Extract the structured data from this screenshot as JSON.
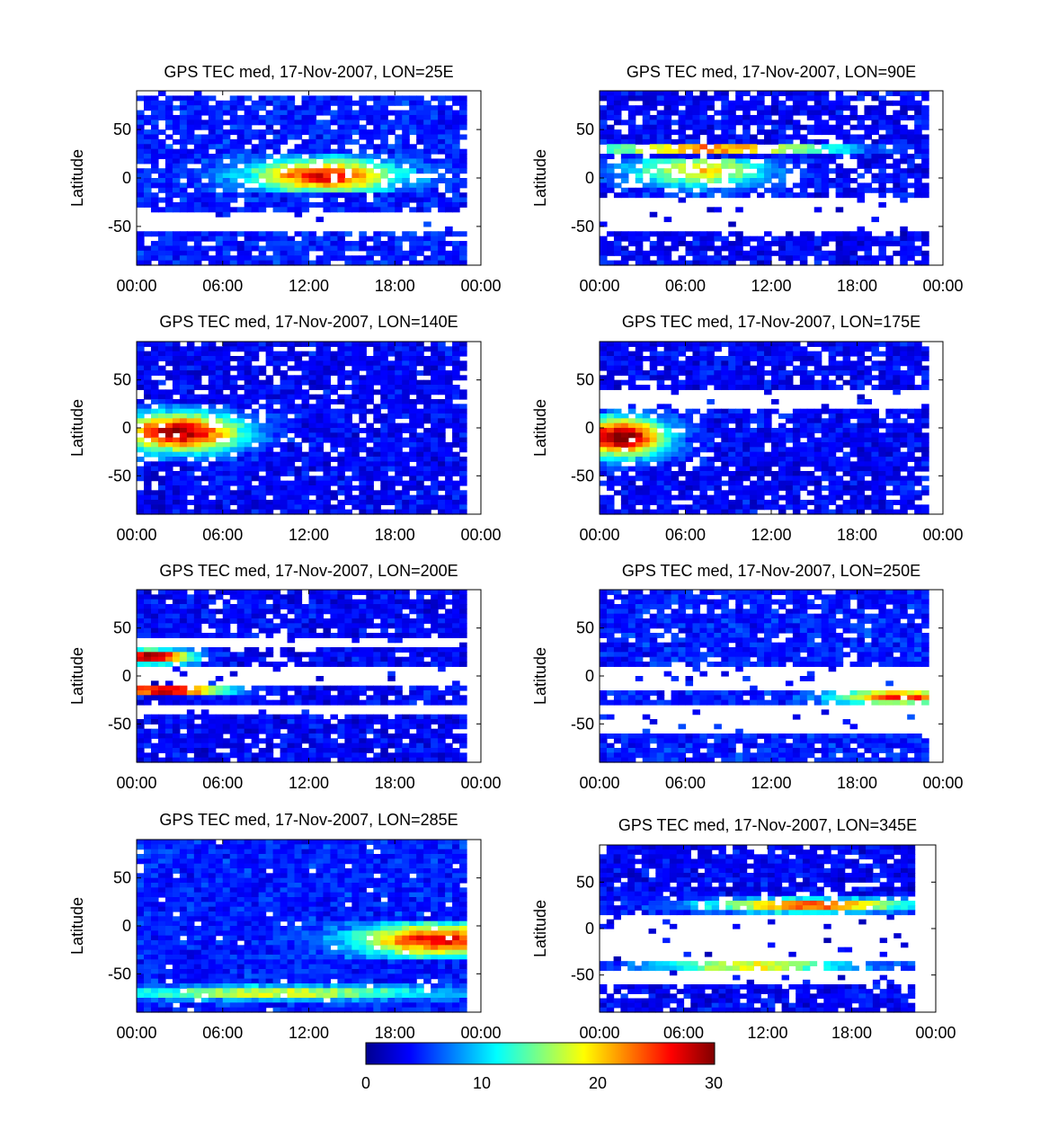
{
  "figure": {
    "x_tick_labels": [
      "00:00",
      "06:00",
      "12:00",
      "18:00",
      "00:00"
    ],
    "y_tick_labels": [
      "50",
      "0",
      "-50"
    ],
    "ylabel": "Latitude"
  },
  "chart_data": [
    {
      "type": "heatmap",
      "title": "GPS TEC med, 17-Nov-2007, LON=25E",
      "xlabel": "",
      "ylabel": "Latitude",
      "xlim": [
        0,
        24
      ],
      "ylim": [
        -90,
        90
      ],
      "x_ticks": [
        "00:00",
        "06:00",
        "12:00",
        "18:00",
        "00:00"
      ],
      "y_ticks": [
        50,
        0,
        -50
      ],
      "color_range": [
        0,
        30
      ],
      "features": [
        {
          "t": 13,
          "lat": 2,
          "st": 3.5,
          "slat": 12,
          "amp": 22,
          "lmin": -15,
          "lmax": 25
        }
      ],
      "base": 4,
      "bands": [
        [
          -35,
          85
        ],
        [
          -90,
          -55
        ]
      ],
      "drop": 0.14,
      "tmax": 23.1
    },
    {
      "type": "heatmap",
      "title": "GPS TEC med, 17-Nov-2007, LON=90E",
      "xlabel": "",
      "ylabel": "Latitude",
      "xlim": [
        0,
        24
      ],
      "ylim": [
        -90,
        90
      ],
      "x_ticks": [
        "00:00",
        "06:00",
        "12:00",
        "18:00",
        "00:00"
      ],
      "y_ticks": [
        50,
        0,
        -50
      ],
      "color_range": [
        0,
        30
      ],
      "features": [
        {
          "t": 7,
          "lat": 8,
          "st": 3.5,
          "slat": 12,
          "amp": 16,
          "lmin": -20,
          "lmax": 22
        },
        {
          "t": 8,
          "lat": 30,
          "st": 6,
          "slat": 3,
          "amp": 26,
          "lmin": 26,
          "lmax": 34
        }
      ],
      "base": 3,
      "bands": [
        [
          -20,
          90
        ],
        [
          -90,
          -55
        ]
      ],
      "drop": 0.2,
      "tmax": 23.1
    },
    {
      "type": "heatmap",
      "title": "GPS TEC med, 17-Nov-2007, LON=140E",
      "xlabel": "",
      "ylabel": "Latitude",
      "xlim": [
        0,
        24
      ],
      "ylim": [
        -90,
        90
      ],
      "x_ticks": [
        "00:00",
        "06:00",
        "12:00",
        "18:00",
        "00:00"
      ],
      "y_ticks": [
        50,
        0,
        -50
      ],
      "color_range": [
        0,
        30
      ],
      "features": [
        {
          "t": 3,
          "lat": -5,
          "st": 3,
          "slat": 14,
          "amp": 26,
          "lmin": -35,
          "lmax": 25
        }
      ],
      "base": 3,
      "bands": [
        [
          -60,
          90
        ],
        [
          -90,
          -60
        ]
      ],
      "drop": 0.12,
      "tmax": 23.1
    },
    {
      "type": "heatmap",
      "title": "GPS TEC med, 17-Nov-2007, LON=175E",
      "xlabel": "",
      "ylabel": "Latitude",
      "xlim": [
        0,
        24
      ],
      "ylim": [
        -90,
        90
      ],
      "x_ticks": [
        "00:00",
        "06:00",
        "12:00",
        "18:00",
        "00:00"
      ],
      "y_ticks": [
        50,
        0,
        -50
      ],
      "color_range": [
        0,
        30
      ],
      "features": [
        {
          "t": 1.5,
          "lat": -10,
          "st": 2.2,
          "slat": 14,
          "amp": 28,
          "lmin": -45,
          "lmax": 20
        }
      ],
      "base": 3,
      "bands": [
        [
          -60,
          20
        ],
        [
          40,
          90
        ],
        [
          -90,
          -60
        ]
      ],
      "drop": 0.12,
      "tmax": 23.1
    },
    {
      "type": "heatmap",
      "title": "GPS TEC med, 17-Nov-2007, LON=200E",
      "xlabel": "",
      "ylabel": "Latitude",
      "xlim": [
        0,
        24
      ],
      "ylim": [
        -90,
        90
      ],
      "x_ticks": [
        "00:00",
        "06:00",
        "12:00",
        "18:00",
        "00:00"
      ],
      "y_ticks": [
        50,
        0,
        -50
      ],
      "color_range": [
        0,
        30
      ],
      "features": [
        {
          "t": 1,
          "lat": 20,
          "st": 2,
          "slat": 5,
          "amp": 28,
          "lmin": 10,
          "lmax": 28
        },
        {
          "t": 2,
          "lat": -15,
          "st": 3,
          "slat": 5,
          "amp": 26,
          "lmin": -22,
          "lmax": -8
        }
      ],
      "base": 3,
      "bands": [
        [
          -30,
          -8
        ],
        [
          10,
          28
        ],
        [
          40,
          90
        ],
        [
          -90,
          -40
        ]
      ],
      "drop": 0.1,
      "tmax": 23.1
    },
    {
      "type": "heatmap",
      "title": "GPS TEC med, 17-Nov-2007, LON=250E",
      "xlabel": "",
      "ylabel": "Latitude",
      "xlim": [
        0,
        24
      ],
      "ylim": [
        -90,
        90
      ],
      "x_ticks": [
        "00:00",
        "06:00",
        "12:00",
        "18:00",
        "00:00"
      ],
      "y_ticks": [
        50,
        0,
        -50
      ],
      "color_range": [
        0,
        30
      ],
      "features": [
        {
          "t": 21,
          "lat": -22,
          "st": 3,
          "slat": 5,
          "amp": 22,
          "lmin": -28,
          "lmax": -15
        }
      ],
      "base": 4,
      "bands": [
        [
          10,
          90
        ],
        [
          -30,
          -15
        ],
        [
          -90,
          -60
        ]
      ],
      "drop": 0.1,
      "tmax": 23.1
    },
    {
      "type": "heatmap",
      "title": "GPS TEC med, 17-Nov-2007, LON=285E",
      "xlabel": "",
      "ylabel": "Latitude",
      "xlim": [
        0,
        24
      ],
      "ylim": [
        -90,
        90
      ],
      "x_ticks": [
        "00:00",
        "06:00",
        "12:00",
        "18:00",
        "00:00"
      ],
      "y_ticks": [
        50,
        0,
        -50
      ],
      "color_range": [
        0,
        30
      ],
      "features": [
        {
          "t": 21,
          "lat": -15,
          "st": 4,
          "slat": 12,
          "amp": 22,
          "lmin": -35,
          "lmax": 5
        },
        {
          "t": 10,
          "lat": -70,
          "st": 8,
          "slat": 5,
          "amp": 14,
          "lmin": -80,
          "lmax": -60
        }
      ],
      "base": 4,
      "bands": [
        [
          -90,
          90
        ]
      ],
      "drop": 0.03,
      "tmax": 23.1
    },
    {
      "type": "heatmap",
      "title": "GPS TEC med, 17-Nov-2007, LON=345E",
      "xlabel": "",
      "ylabel": "Latitude",
      "xlim": [
        0,
        24
      ],
      "ylim": [
        -90,
        90
      ],
      "x_ticks": [
        "00:00",
        "06:00",
        "12:00",
        "18:00",
        "00:00"
      ],
      "y_ticks": [
        50,
        0,
        -50
      ],
      "color_range": [
        0,
        30
      ],
      "features": [
        {
          "t": 15,
          "lat": 25,
          "st": 5,
          "slat": 5,
          "amp": 22,
          "lmin": 15,
          "lmax": 35
        },
        {
          "t": 11,
          "lat": -40,
          "st": 5,
          "slat": 3,
          "amp": 20,
          "lmin": -45,
          "lmax": -35
        }
      ],
      "base": 3,
      "bands": [
        [
          15,
          90
        ],
        [
          -45,
          -35
        ],
        [
          -90,
          -60
        ]
      ],
      "drop": 0.12,
      "tmax": 22.3
    }
  ],
  "colorbar": {
    "ticks": [
      "0",
      "10",
      "20",
      "30"
    ],
    "range": [
      0,
      30
    ],
    "colormap": "jet"
  }
}
